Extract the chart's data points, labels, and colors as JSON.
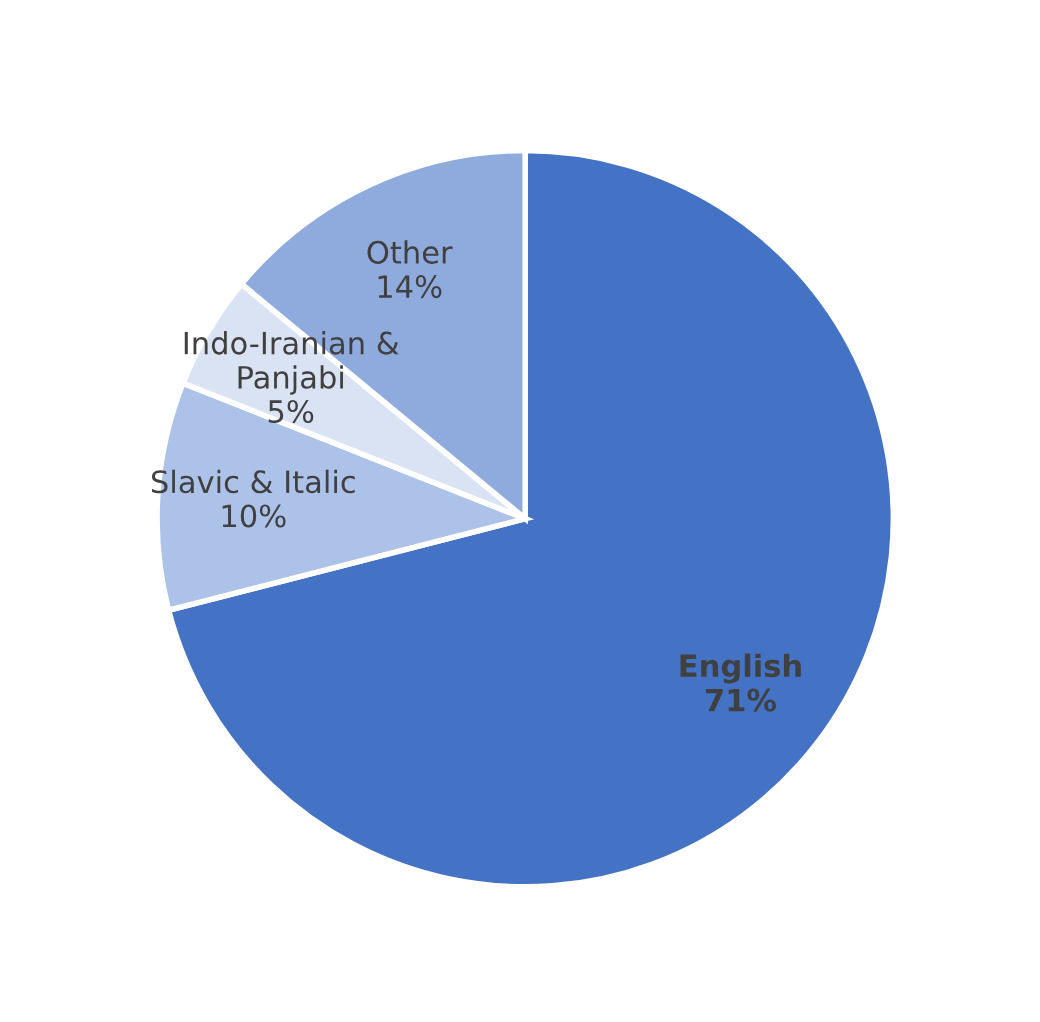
{
  "chart_data": {
    "type": "pie",
    "categories": [
      "English",
      "Slavic & Italic",
      "Indo-Iranian &\nPanjabi",
      "Other"
    ],
    "values": [
      71,
      10,
      5,
      14
    ],
    "colors": [
      "#4472c4",
      "#adc2e8",
      "#dae3f3",
      "#8faadc"
    ],
    "value_labels": [
      "71%",
      "10%",
      "5%",
      "14%"
    ]
  }
}
